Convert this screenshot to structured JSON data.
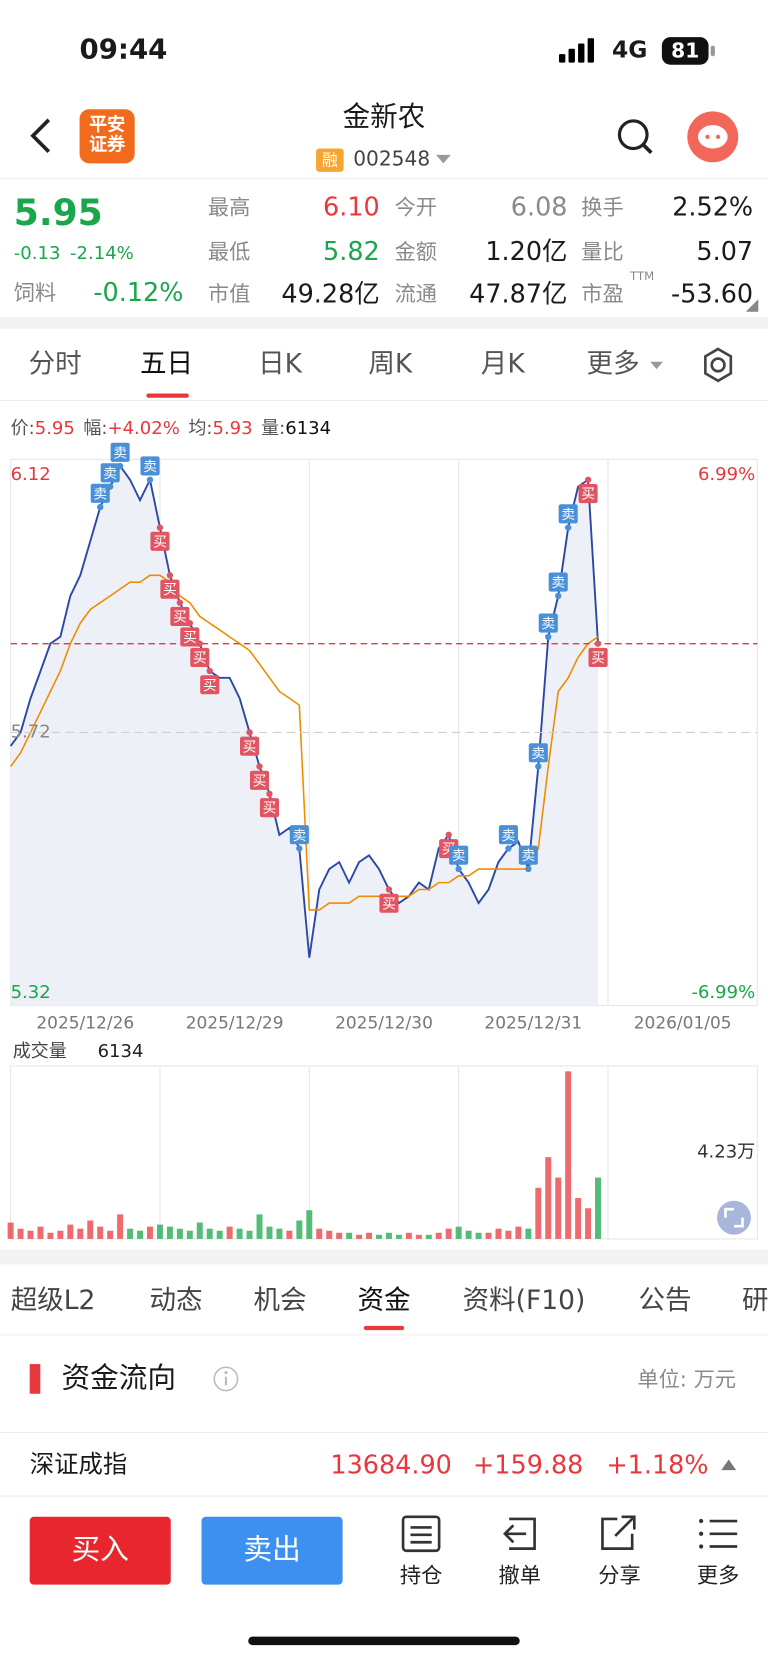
{
  "status": {
    "time": "09:44",
    "network": "4G",
    "battery": "81"
  },
  "header": {
    "brand": [
      "平安",
      "证券"
    ],
    "title": "金新农",
    "tag": "融",
    "code": "002548"
  },
  "quote": {
    "price": "5.95",
    "change": "-0.13",
    "pct": "-2.14%",
    "industry": "饲料",
    "industry_pct": "-0.12%",
    "fields": [
      [
        "最高",
        "6.10"
      ],
      [
        "今开",
        "6.08"
      ],
      [
        "换手",
        "2.52%"
      ],
      [
        "最低",
        "5.82"
      ],
      [
        "金额",
        "1.20亿"
      ],
      [
        "量比",
        "5.07"
      ],
      [
        "市值",
        "49.28亿"
      ],
      [
        "流通",
        "47.87亿"
      ],
      [
        "市盈",
        "-53.60"
      ]
    ],
    "ttm": "TTM"
  },
  "tabs": [
    "分时",
    "五日",
    "日K",
    "周K",
    "月K",
    "更多"
  ],
  "info": [
    [
      "价:",
      "5.95"
    ],
    [
      "幅:",
      "+4.02%"
    ],
    [
      "均:",
      "5.93"
    ],
    [
      "量:",
      "6134"
    ]
  ],
  "chart_data": {
    "type": "line",
    "categories": [
      "2025/12/26",
      "2025/12/29",
      "2025/12/30",
      "2025/12/31",
      "2026/01/05"
    ],
    "xlim": [
      0,
      75
    ],
    "x": [
      0,
      1,
      2,
      3,
      4,
      5,
      6,
      7,
      8,
      9,
      10,
      11,
      12,
      13,
      14,
      15,
      16,
      17,
      18,
      19,
      20,
      21,
      22,
      23,
      24,
      25,
      26,
      27,
      28,
      29,
      30,
      31,
      32,
      33,
      34,
      35,
      36,
      37,
      38,
      39,
      40,
      41,
      42,
      43,
      44,
      45,
      46,
      47,
      48,
      49,
      50,
      51,
      52,
      53,
      54,
      55,
      56,
      57,
      58,
      59
    ],
    "ylim": [
      5.32,
      6.12
    ],
    "yticks": [
      5.32,
      5.72,
      6.12
    ],
    "y2lim": [
      -6.99,
      6.99
    ],
    "y2ticks": [
      {
        "value": -6.99,
        "label": "-6.99%"
      },
      {
        "value": 6.99,
        "label": "6.99%"
      }
    ],
    "series": [
      {
        "color": "#2b48a6",
        "values": [
          5.7,
          5.72,
          5.77,
          5.81,
          5.85,
          5.86,
          5.92,
          5.95,
          6.0,
          6.05,
          6.08,
          6.11,
          6.09,
          6.06,
          6.09,
          6.02,
          5.95,
          5.91,
          5.88,
          5.85,
          5.81,
          5.8,
          5.8,
          5.77,
          5.72,
          5.67,
          5.63,
          5.57,
          5.58,
          5.55,
          5.39,
          5.49,
          5.52,
          5.53,
          5.5,
          5.53,
          5.54,
          5.52,
          5.49,
          5.47,
          5.48,
          5.5,
          5.49,
          5.55,
          5.57,
          5.52,
          5.5,
          5.47,
          5.49,
          5.53,
          5.55,
          5.56,
          5.52,
          5.67,
          5.86,
          5.92,
          6.02,
          6.08,
          6.09,
          5.85
        ]
      },
      {
        "color": "#f08c00",
        "values": [
          5.67,
          5.69,
          5.72,
          5.75,
          5.78,
          5.81,
          5.85,
          5.88,
          5.9,
          5.91,
          5.92,
          5.93,
          5.94,
          5.94,
          5.95,
          5.95,
          5.94,
          5.92,
          5.91,
          5.89,
          5.88,
          5.87,
          5.86,
          5.85,
          5.84,
          5.82,
          5.8,
          5.78,
          5.77,
          5.76,
          5.46,
          5.46,
          5.47,
          5.47,
          5.47,
          5.48,
          5.48,
          5.48,
          5.48,
          5.48,
          5.48,
          5.49,
          5.49,
          5.5,
          5.5,
          5.51,
          5.51,
          5.52,
          5.52,
          5.52,
          5.52,
          5.52,
          5.52,
          5.55,
          5.67,
          5.78,
          5.8,
          5.83,
          5.85,
          5.86
        ]
      }
    ],
    "markers": [
      {
        "label": "卖",
        "at": 9
      },
      {
        "label": "卖",
        "at": 10
      },
      {
        "label": "卖",
        "at": 11
      },
      {
        "label": "卖",
        "at": 14
      },
      {
        "label": "买",
        "at": 15
      },
      {
        "label": "买",
        "at": 16
      },
      {
        "label": "买",
        "at": 17
      },
      {
        "label": "买",
        "at": 18
      },
      {
        "label": "买",
        "at": 19
      },
      {
        "label": "买",
        "at": 20
      },
      {
        "label": "买",
        "at": 24
      },
      {
        "label": "买",
        "at": 25
      },
      {
        "label": "买",
        "at": 26
      },
      {
        "label": "卖",
        "at": 29
      },
      {
        "label": "买",
        "at": 38
      },
      {
        "label": "买",
        "at": 44
      },
      {
        "label": "卖",
        "at": 45
      },
      {
        "label": "卖",
        "at": 50
      },
      {
        "label": "卖",
        "at": 52
      },
      {
        "label": "卖",
        "at": 53
      },
      {
        "label": "卖",
        "at": 54
      },
      {
        "label": "卖",
        "at": 55
      },
      {
        "label": "卖",
        "at": 56
      },
      {
        "label": "买",
        "at": 58
      },
      {
        "label": "买",
        "at": 59
      }
    ],
    "volume": {
      "title": "成交量",
      "value": 6134,
      "ylim": [
        0,
        84600
      ],
      "yticks": [
        {
          "value": 42300,
          "label": "4.23万"
        }
      ],
      "values": [
        8000,
        5000,
        4000,
        6000,
        3000,
        4000,
        7000,
        5000,
        9000,
        6000,
        4000,
        12000,
        5000,
        4000,
        6000,
        7000,
        6000,
        5000,
        4000,
        8000,
        5000,
        4000,
        6000,
        5000,
        4000,
        12000,
        6000,
        5000,
        4000,
        9000,
        14000,
        5000,
        4000,
        3000,
        3000,
        2000,
        3000,
        2000,
        3000,
        2000,
        3000,
        2000,
        2000,
        3000,
        5000,
        6000,
        4000,
        3000,
        3000,
        5000,
        4000,
        6000,
        5000,
        25000,
        40000,
        30000,
        82000,
        20000,
        15000,
        30000
      ]
    }
  },
  "bottom_tabs": [
    "超级L2",
    "动态",
    "机会",
    "资金",
    "资料(F10)",
    "公告",
    "研"
  ],
  "section": {
    "title": "资金流向",
    "unit": "单位: 万元"
  },
  "index_row": {
    "name": "深证成指",
    "value": "13684.90",
    "change": "+159.88",
    "pct": "+1.18%"
  },
  "actions": {
    "buy": "买入",
    "sell": "卖出",
    "items": [
      "持仓",
      "撤单",
      "分享",
      "更多"
    ]
  }
}
